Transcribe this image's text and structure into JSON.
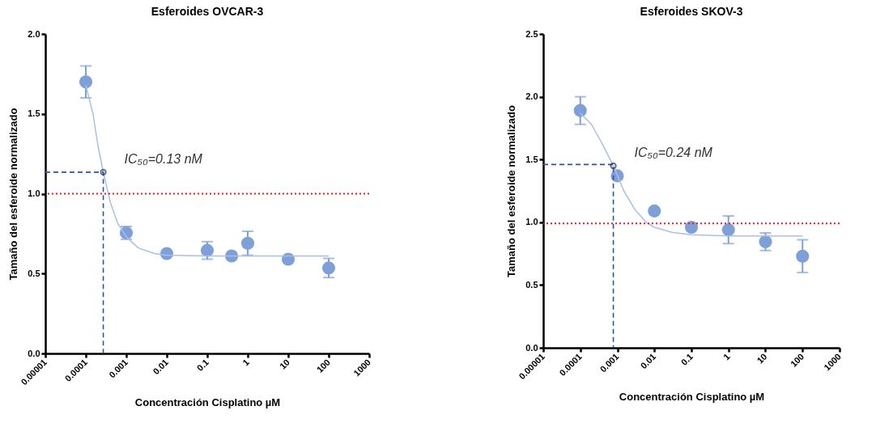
{
  "chart_data": [
    {
      "type": "scatter",
      "title": "Esferoides OVCAR-3",
      "xlabel": "Concentración Cisplatino µM",
      "ylabel": "Tamaño del esferoide normalizado",
      "log": "x",
      "xlim": [
        1e-05,
        1000
      ],
      "xticks": [
        {
          "value": 1e-05,
          "label": "0.00001"
        },
        {
          "value": 0.0001,
          "label": "0.0001"
        },
        {
          "value": 0.001,
          "label": "0.001"
        },
        {
          "value": 0.01,
          "label": "0.01"
        },
        {
          "value": 0.1,
          "label": "0.1"
        },
        {
          "value": 1,
          "label": "1"
        },
        {
          "value": 10,
          "label": "10"
        },
        {
          "value": 100,
          "label": "100"
        },
        {
          "value": 1000,
          "label": "1000"
        }
      ],
      "ylim": [
        0,
        2
      ],
      "yticks": [
        {
          "value": 0,
          "label": "0.0"
        },
        0.5,
        {
          "value": 1,
          "label": "1.0"
        },
        1.5,
        {
          "value": 2,
          "label": "2.0"
        }
      ],
      "series": [
        {
          "marker": "circle",
          "color": "#7f9fd8",
          "x": [
            0.0001,
            0.001,
            0.01,
            0.1,
            0.4,
            1,
            10,
            100
          ],
          "values": [
            1.7,
            0.755,
            0.625,
            0.645,
            0.61,
            0.69,
            0.59,
            0.535
          ],
          "errors": [
            0.1,
            0.04,
            null,
            0.055,
            null,
            0.075,
            null,
            0.06
          ]
        },
        {
          "type": "line",
          "color": "#a9bfe6",
          "x": [
            0.0001,
            0.00015,
            0.0002,
            0.00027,
            0.0004,
            0.0006,
            0.001,
            0.002,
            0.005,
            0.01,
            0.1,
            100
          ],
          "values": [
            1.68,
            1.5,
            1.3,
            1.135,
            0.95,
            0.82,
            0.73,
            0.66,
            0.625,
            0.615,
            0.61,
            0.61
          ]
        },
        {
          "type": "line",
          "color": "#2f5597",
          "line_style": "dashed",
          "x": [
            1e-05,
            0.00027,
            0.00027
          ],
          "values": [
            1.135,
            1.135,
            0
          ]
        }
      ],
      "ref_lines": [
        {
          "axis": "y",
          "value": 1,
          "color": "#e02020",
          "line_style": "dotted"
        }
      ],
      "annotations": [
        {
          "text": "IC₅₀=0.13 nM",
          "x": 0.00027,
          "y": 1.135
        }
      ]
    },
    {
      "type": "scatter",
      "title": "Esferoides  SKOV-3",
      "xlabel": "Concentración Cisplatino µM",
      "ylabel": "Tamaño del esferoide normalizado",
      "log": "x",
      "xlim": [
        1e-05,
        1000
      ],
      "xticks": [
        {
          "value": 1e-05,
          "label": "0.00001"
        },
        {
          "value": 0.0001,
          "label": "0.0001"
        },
        {
          "value": 0.001,
          "label": "0.001"
        },
        {
          "value": 0.01,
          "label": "0.01"
        },
        {
          "value": 0.1,
          "label": "0.1"
        },
        {
          "value": 1,
          "label": "1"
        },
        {
          "value": 10,
          "label": "10"
        },
        {
          "value": 100,
          "label": "100"
        },
        {
          "value": 1000,
          "label": "1000"
        }
      ],
      "ylim": [
        0,
        2.5
      ],
      "yticks": [
        {
          "value": 0,
          "label": "0.0"
        },
        0.5,
        {
          "value": 1,
          "label": "1.0"
        },
        1.5,
        {
          "value": 2,
          "label": "2.0"
        },
        2.5
      ],
      "series": [
        {
          "marker": "circle",
          "color": "#7f9fd8",
          "x": [
            0.0001,
            0.001,
            0.01,
            0.1,
            1,
            10,
            100
          ],
          "values": [
            1.89,
            1.37,
            1.09,
            0.96,
            0.94,
            0.845,
            0.73
          ],
          "errors": [
            0.11,
            null,
            null,
            null,
            0.11,
            0.07,
            0.13
          ]
        },
        {
          "type": "line",
          "color": "#a9bfe6",
          "x": [
            0.0001,
            0.0002,
            0.0004,
            0.00078,
            0.0015,
            0.003,
            0.006,
            0.01,
            0.03,
            0.1,
            1,
            100
          ],
          "values": [
            1.87,
            1.78,
            1.62,
            1.45,
            1.25,
            1.1,
            1.0,
            0.96,
            0.92,
            0.9,
            0.89,
            0.89
          ]
        },
        {
          "type": "line",
          "color": "#2f5597",
          "line_style": "dashed",
          "x": [
            1e-05,
            0.00078,
            0.00078
          ],
          "values": [
            1.46,
            1.46,
            0
          ]
        }
      ],
      "ref_lines": [
        {
          "axis": "y",
          "value": 0.99,
          "color": "#e02020",
          "line_style": "dotted"
        }
      ],
      "annotations": [
        {
          "text": "IC₅₀=0.24 nM",
          "x": 0.00078,
          "y": 1.45
        }
      ]
    }
  ]
}
